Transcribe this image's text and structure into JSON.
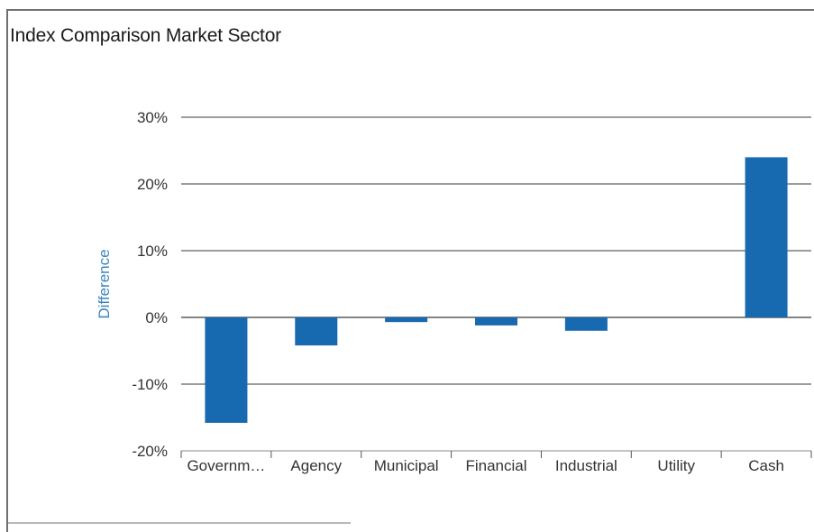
{
  "chart_data": {
    "type": "bar",
    "title": "Index Comparison Market Sector",
    "xlabel": "",
    "ylabel": "Difference",
    "categories": [
      "Governm…",
      "Agency",
      "Municipal",
      "Financial",
      "Industrial",
      "Utility",
      "Cash"
    ],
    "values": [
      -15.8,
      -4.2,
      -0.7,
      -1.2,
      -2.0,
      0.0,
      24.0
    ],
    "ylim": [
      -20,
      30
    ],
    "yticks": [
      30,
      20,
      10,
      0,
      -10,
      -20
    ],
    "ytick_labels": [
      "30%",
      "20%",
      "10%",
      "0%",
      "-10%",
      "-20%"
    ],
    "grid": true,
    "legend": "none",
    "colors": {
      "bar": "#1769b0",
      "ylabel": "#3d84bf",
      "grid": "#3a3a3a",
      "text": "#333333"
    }
  }
}
